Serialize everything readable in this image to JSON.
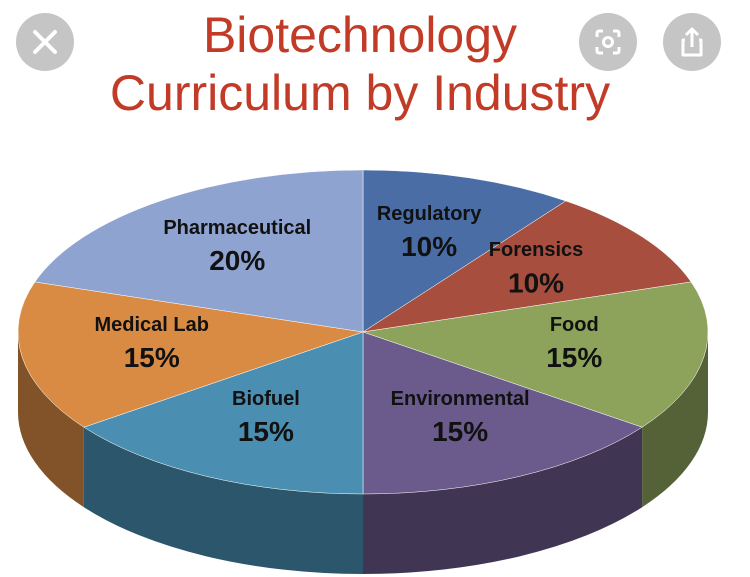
{
  "chart_data": {
    "type": "pie",
    "title": "Biotechnology Curriculum by Industry",
    "categories": [
      "Regulatory",
      "Forensics",
      "Food",
      "Environmental",
      "Biofuel",
      "Medical Lab",
      "Pharmaceutical"
    ],
    "values": [
      10,
      10,
      15,
      15,
      15,
      15,
      20
    ],
    "value_labels": [
      "10%",
      "10%",
      "15%",
      "15%",
      "15%",
      "15%",
      "20%"
    ],
    "colors": [
      "#4a6da6",
      "#a84e3e",
      "#8da35b",
      "#6b5a8c",
      "#4a8fb2",
      "#d98b44",
      "#8fa3d0"
    ]
  }
}
